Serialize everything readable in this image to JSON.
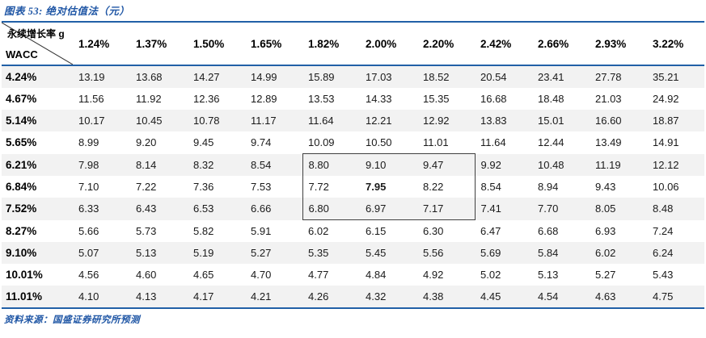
{
  "title": "图表 53: 绝对估值法（元）",
  "source": "资料来源：国盛证券研究所预测",
  "colors": {
    "accent_blue": "#2160A7",
    "title_blue": "#1F56A5",
    "stripe_gray": "#F2F2F2",
    "highlight_border": "#404040",
    "text": "#1A1A1A"
  },
  "table": {
    "corner_top_label": "永续增长率 g",
    "corner_bottom_label": "WACC",
    "columns": [
      "1.24%",
      "1.37%",
      "1.50%",
      "1.65%",
      "1.82%",
      "2.00%",
      "2.20%",
      "2.42%",
      "2.66%",
      "2.93%",
      "3.22%"
    ],
    "rows": [
      {
        "wacc": "4.24%",
        "values": [
          "13.19",
          "13.68",
          "14.27",
          "14.99",
          "15.89",
          "17.03",
          "18.52",
          "20.54",
          "23.41",
          "27.78",
          "35.21"
        ]
      },
      {
        "wacc": "4.67%",
        "values": [
          "11.56",
          "11.92",
          "12.36",
          "12.89",
          "13.53",
          "14.33",
          "15.35",
          "16.68",
          "18.48",
          "21.03",
          "24.92"
        ]
      },
      {
        "wacc": "5.14%",
        "values": [
          "10.17",
          "10.45",
          "10.78",
          "11.17",
          "11.64",
          "12.21",
          "12.92",
          "13.83",
          "15.01",
          "16.60",
          "18.87"
        ]
      },
      {
        "wacc": "5.65%",
        "values": [
          "8.99",
          "9.20",
          "9.45",
          "9.74",
          "10.09",
          "10.50",
          "11.01",
          "11.64",
          "12.44",
          "13.49",
          "14.91"
        ]
      },
      {
        "wacc": "6.21%",
        "values": [
          "7.98",
          "8.14",
          "8.32",
          "8.54",
          "8.80",
          "9.10",
          "9.47",
          "9.92",
          "10.48",
          "11.19",
          "12.12"
        ]
      },
      {
        "wacc": "6.84%",
        "values": [
          "7.10",
          "7.22",
          "7.36",
          "7.53",
          "7.72",
          "7.95",
          "8.22",
          "8.54",
          "8.94",
          "9.43",
          "10.06"
        ]
      },
      {
        "wacc": "7.52%",
        "values": [
          "6.33",
          "6.43",
          "6.53",
          "6.66",
          "6.80",
          "6.97",
          "7.17",
          "7.41",
          "7.70",
          "8.05",
          "8.48"
        ]
      },
      {
        "wacc": "8.27%",
        "values": [
          "5.66",
          "5.73",
          "5.82",
          "5.91",
          "6.02",
          "6.15",
          "6.30",
          "6.47",
          "6.68",
          "6.93",
          "7.24"
        ]
      },
      {
        "wacc": "9.10%",
        "values": [
          "5.07",
          "5.13",
          "5.19",
          "5.27",
          "5.35",
          "5.45",
          "5.56",
          "5.69",
          "5.84",
          "6.02",
          "6.24"
        ]
      },
      {
        "wacc": "10.01%",
        "values": [
          "4.56",
          "4.60",
          "4.65",
          "4.70",
          "4.77",
          "4.84",
          "4.92",
          "5.02",
          "5.13",
          "5.27",
          "5.43"
        ]
      },
      {
        "wacc": "11.01%",
        "values": [
          "4.10",
          "4.13",
          "4.17",
          "4.21",
          "4.26",
          "4.32",
          "4.38",
          "4.45",
          "4.54",
          "4.63",
          "4.75"
        ]
      }
    ],
    "highlight": {
      "row_start": 4,
      "row_end": 6,
      "col_start": 4,
      "col_end": 6,
      "bold_row": 5,
      "bold_col": 5
    }
  }
}
